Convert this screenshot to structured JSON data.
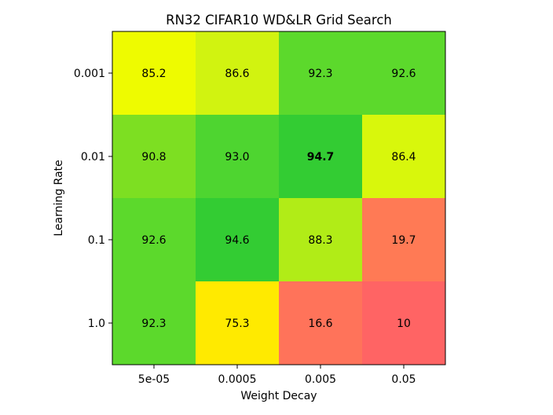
{
  "chart_data": {
    "type": "heatmap",
    "title": "RN32 CIFAR10 WD&LR Grid Search",
    "xlabel": "Weight Decay",
    "ylabel": "Learning Rate",
    "x_categories": [
      "5e-05",
      "0.0005",
      "0.005",
      "0.05"
    ],
    "y_categories": [
      "0.001",
      "0.01",
      "0.1",
      "1.0"
    ],
    "cell_labels": [
      [
        "85.2",
        "86.6",
        "92.3",
        "92.6"
      ],
      [
        "90.8",
        "93.0",
        "94.7",
        "86.4"
      ],
      [
        "92.6",
        "94.6",
        "88.3",
        "19.7"
      ],
      [
        "92.3",
        "75.3",
        "16.6",
        "10"
      ]
    ],
    "values": [
      [
        85.2,
        86.6,
        92.3,
        92.6
      ],
      [
        90.8,
        93.0,
        94.7,
        86.4
      ],
      [
        92.6,
        94.6,
        88.3,
        19.7
      ],
      [
        92.3,
        75.3,
        16.6,
        10
      ]
    ],
    "highlight": {
      "row": 1,
      "col": 2,
      "style": "bold"
    },
    "colors": [
      [
        "#eefb00",
        "#d1f310",
        "#5cd92c",
        "#5cd92c"
      ],
      [
        "#7ddf22",
        "#4ed530",
        "#33cc33",
        "#d8f70c"
      ],
      [
        "#5cd92c",
        "#33cc33",
        "#b1ec17",
        "#ff7a55"
      ],
      [
        "#5cd92c",
        "#ffea00",
        "#ff735a",
        "#ff6464"
      ]
    ]
  }
}
